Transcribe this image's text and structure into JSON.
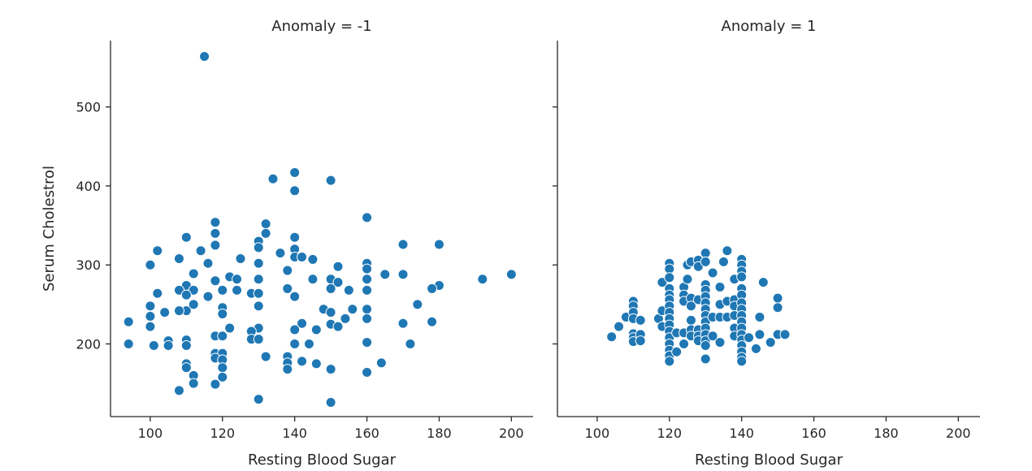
{
  "chart_data": {
    "type": "scatter",
    "xlabel": "Resting Blood Sugar",
    "ylabel": "Serum Cholestrol",
    "xlim": [
      89,
      206
    ],
    "ylim": [
      108,
      584
    ],
    "xticks": [
      100,
      120,
      140,
      160,
      180,
      200
    ],
    "yticks": [
      200,
      300,
      400,
      500
    ],
    "point_color": "#1f77b4",
    "panels": [
      {
        "title": "Anomaly = -1",
        "points": [
          [
            115,
            564
          ],
          [
            140,
            417
          ],
          [
            134,
            409
          ],
          [
            150,
            407
          ],
          [
            140,
            394
          ],
          [
            160,
            360
          ],
          [
            118,
            354
          ],
          [
            132,
            352
          ],
          [
            118,
            340
          ],
          [
            132,
            340
          ],
          [
            110,
            335
          ],
          [
            140,
            335
          ],
          [
            130,
            330
          ],
          [
            170,
            326
          ],
          [
            180,
            326
          ],
          [
            118,
            325
          ],
          [
            130,
            322
          ],
          [
            102,
            318
          ],
          [
            114,
            318
          ],
          [
            140,
            320
          ],
          [
            136,
            315
          ],
          [
            108,
            308
          ],
          [
            140,
            310
          ],
          [
            125,
            308
          ],
          [
            142,
            310
          ],
          [
            145,
            307
          ],
          [
            116,
            302
          ],
          [
            130,
            302
          ],
          [
            160,
            302
          ],
          [
            100,
            300
          ],
          [
            138,
            293
          ],
          [
            152,
            298
          ],
          [
            160,
            295
          ],
          [
            112,
            289
          ],
          [
            150,
            282
          ],
          [
            165,
            288
          ],
          [
            170,
            288
          ],
          [
            200,
            288
          ],
          [
            118,
            280
          ],
          [
            122,
            285
          ],
          [
            124,
            282
          ],
          [
            130,
            282
          ],
          [
            145,
            282
          ],
          [
            152,
            278
          ],
          [
            160,
            282
          ],
          [
            180,
            274
          ],
          [
            192,
            282
          ],
          [
            110,
            274
          ],
          [
            112,
            268
          ],
          [
            108,
            268
          ],
          [
            120,
            268
          ],
          [
            124,
            268
          ],
          [
            128,
            264
          ],
          [
            130,
            264
          ],
          [
            138,
            270
          ],
          [
            150,
            270
          ],
          [
            155,
            268
          ],
          [
            178,
            270
          ],
          [
            160,
            268
          ],
          [
            102,
            264
          ],
          [
            110,
            262
          ],
          [
            116,
            260
          ],
          [
            140,
            260
          ],
          [
            148,
            244
          ],
          [
            112,
            250
          ],
          [
            174,
            250
          ],
          [
            100,
            248
          ],
          [
            110,
            242
          ],
          [
            104,
            240
          ],
          [
            108,
            242
          ],
          [
            120,
            246
          ],
          [
            130,
            248
          ],
          [
            160,
            244
          ],
          [
            156,
            244
          ],
          [
            120,
            238
          ],
          [
            150,
            240
          ],
          [
            100,
            235
          ],
          [
            154,
            232
          ],
          [
            160,
            232
          ],
          [
            178,
            228
          ],
          [
            94,
            228
          ],
          [
            170,
            226
          ],
          [
            142,
            226
          ],
          [
            150,
            225
          ],
          [
            152,
            222
          ],
          [
            122,
            220
          ],
          [
            100,
            222
          ],
          [
            140,
            218
          ],
          [
            146,
            218
          ],
          [
            130,
            220
          ],
          [
            128,
            216
          ],
          [
            118,
            210
          ],
          [
            120,
            210
          ],
          [
            128,
            206
          ],
          [
            130,
            206
          ],
          [
            110,
            205
          ],
          [
            105,
            204
          ],
          [
            94,
            200
          ],
          [
            101,
            198
          ],
          [
            105,
            198
          ],
          [
            110,
            198
          ],
          [
            140,
            200
          ],
          [
            144,
            200
          ],
          [
            160,
            202
          ],
          [
            172,
            200
          ],
          [
            118,
            188
          ],
          [
            120,
            188
          ],
          [
            118,
            182
          ],
          [
            120,
            180
          ],
          [
            132,
            184
          ],
          [
            138,
            184
          ],
          [
            138,
            176
          ],
          [
            142,
            178
          ],
          [
            146,
            175
          ],
          [
            164,
            176
          ],
          [
            110,
            175
          ],
          [
            110,
            170
          ],
          [
            120,
            170
          ],
          [
            138,
            168
          ],
          [
            150,
            168
          ],
          [
            160,
            164
          ],
          [
            120,
            158
          ],
          [
            112,
            160
          ],
          [
            112,
            150
          ],
          [
            118,
            149
          ],
          [
            108,
            141
          ],
          [
            130,
            130
          ],
          [
            150,
            126
          ]
        ]
      },
      {
        "title": "Anomaly = 1",
        "points": [
          [
            104,
            209
          ],
          [
            106,
            222
          ],
          [
            108,
            234
          ],
          [
            110,
            254
          ],
          [
            110,
            248
          ],
          [
            110,
            240
          ],
          [
            110,
            232
          ],
          [
            110,
            213
          ],
          [
            110,
            208
          ],
          [
            110,
            203
          ],
          [
            112,
            230
          ],
          [
            112,
            212
          ],
          [
            112,
            204
          ],
          [
            118,
            278
          ],
          [
            117,
            232
          ],
          [
            118,
            242
          ],
          [
            118,
            222
          ],
          [
            120,
            302
          ],
          [
            120,
            295
          ],
          [
            120,
            284
          ],
          [
            120,
            270
          ],
          [
            120,
            262
          ],
          [
            120,
            256
          ],
          [
            120,
            248
          ],
          [
            120,
            240
          ],
          [
            120,
            232
          ],
          [
            120,
            224
          ],
          [
            120,
            216
          ],
          [
            120,
            208
          ],
          [
            120,
            200
          ],
          [
            120,
            192
          ],
          [
            120,
            185
          ],
          [
            120,
            178
          ],
          [
            122,
            214
          ],
          [
            122,
            190
          ],
          [
            124,
            272
          ],
          [
            124,
            262
          ],
          [
            124,
            254
          ],
          [
            124,
            214
          ],
          [
            124,
            200
          ],
          [
            125,
            300
          ],
          [
            126,
            304
          ],
          [
            125,
            282
          ],
          [
            126,
            258
          ],
          [
            126,
            248
          ],
          [
            126,
            230
          ],
          [
            126,
            218
          ],
          [
            126,
            210
          ],
          [
            128,
            306
          ],
          [
            128,
            298
          ],
          [
            128,
            256
          ],
          [
            128,
            218
          ],
          [
            128,
            210
          ],
          [
            128,
            204
          ],
          [
            130,
            315
          ],
          [
            130,
            304
          ],
          [
            130,
            275
          ],
          [
            130,
            268
          ],
          [
            130,
            260
          ],
          [
            130,
            252
          ],
          [
            130,
            244
          ],
          [
            130,
            236
          ],
          [
            130,
            228
          ],
          [
            130,
            220
          ],
          [
            130,
            212
          ],
          [
            130,
            204
          ],
          [
            130,
            198
          ],
          [
            130,
            181
          ],
          [
            132,
            290
          ],
          [
            132,
            234
          ],
          [
            132,
            210
          ],
          [
            134,
            272
          ],
          [
            134,
            250
          ],
          [
            134,
            234
          ],
          [
            134,
            202
          ],
          [
            135,
            304
          ],
          [
            136,
            318
          ],
          [
            136,
            254
          ],
          [
            136,
            234
          ],
          [
            138,
            282
          ],
          [
            138,
            256
          ],
          [
            138,
            248
          ],
          [
            138,
            236
          ],
          [
            138,
            220
          ],
          [
            138,
            210
          ],
          [
            140,
            307
          ],
          [
            140,
            300
          ],
          [
            140,
            292
          ],
          [
            140,
            285
          ],
          [
            140,
            270
          ],
          [
            140,
            262
          ],
          [
            140,
            252
          ],
          [
            140,
            244
          ],
          [
            140,
            236
          ],
          [
            140,
            228
          ],
          [
            140,
            220
          ],
          [
            140,
            212
          ],
          [
            140,
            205
          ],
          [
            140,
            198
          ],
          [
            140,
            190
          ],
          [
            140,
            183
          ],
          [
            140,
            178
          ],
          [
            142,
            208
          ],
          [
            144,
            194
          ],
          [
            145,
            234
          ],
          [
            145,
            212
          ],
          [
            146,
            278
          ],
          [
            148,
            202
          ],
          [
            150,
            258
          ],
          [
            150,
            246
          ],
          [
            150,
            212
          ],
          [
            152,
            212
          ]
        ]
      }
    ]
  }
}
